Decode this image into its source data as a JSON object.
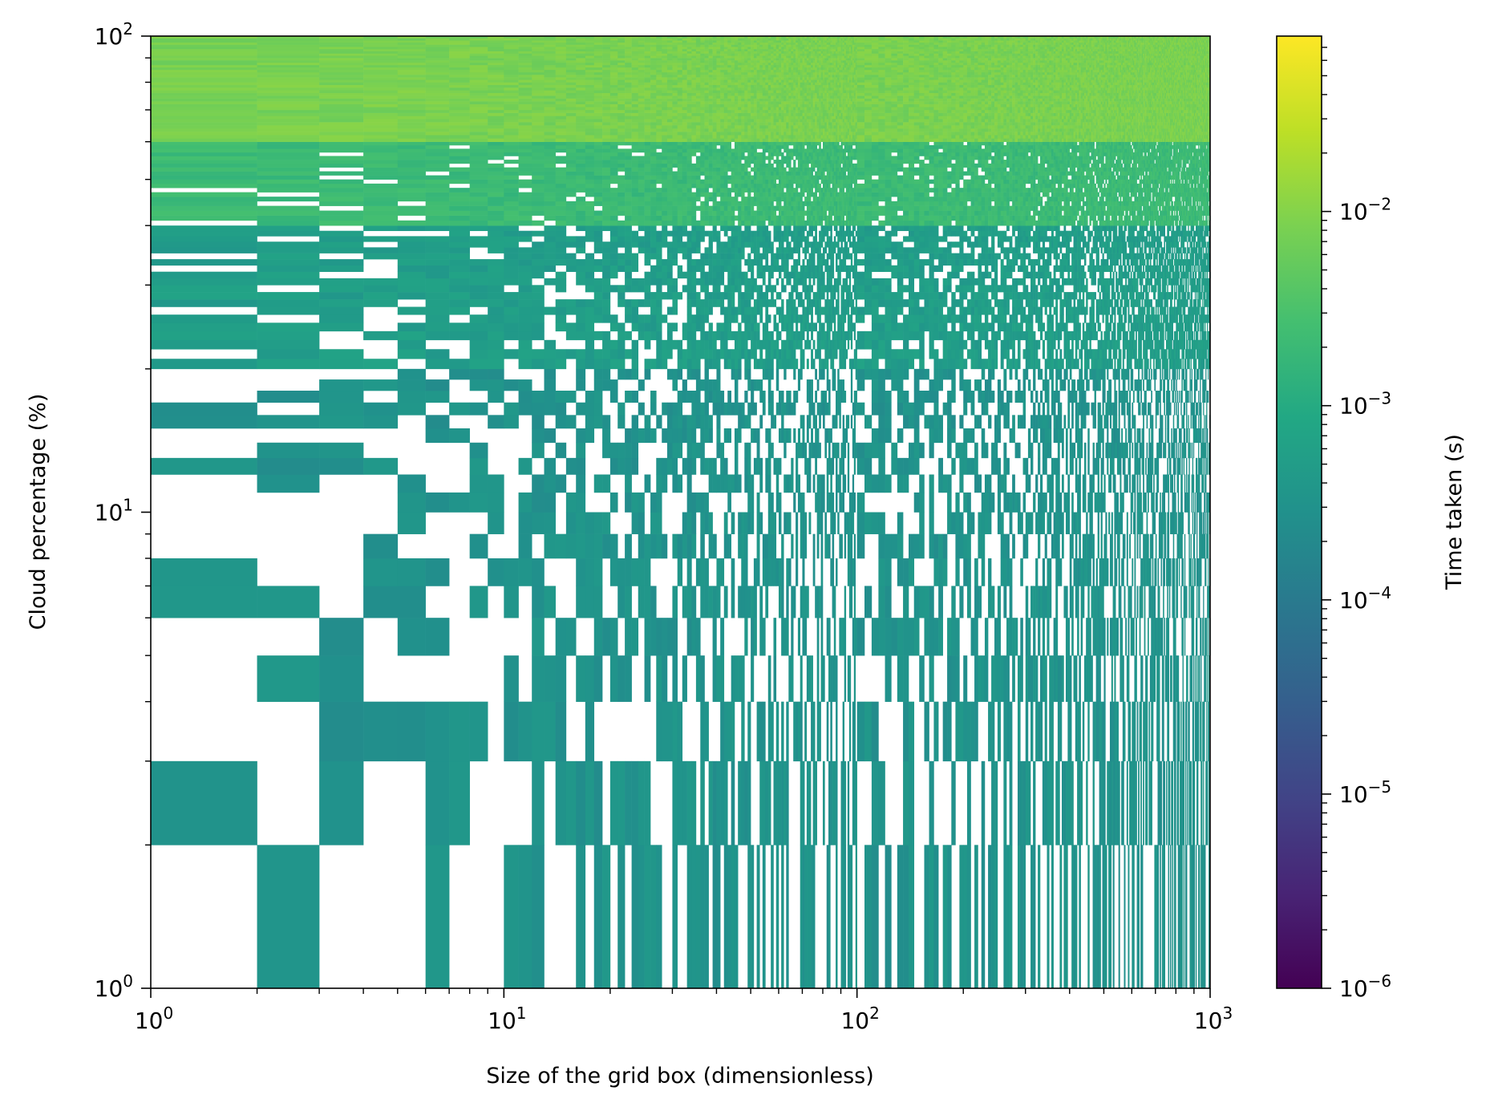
{
  "chart_data": {
    "type": "heatmap",
    "xlabel": "Size of the grid box (dimensionless)",
    "ylabel": "Cloud percentage (%)",
    "colorbar_label": "Time taken (s)",
    "xscale": "log",
    "yscale": "log",
    "cscale": "log",
    "xlim": [
      1,
      1000
    ],
    "ylim": [
      1,
      100
    ],
    "clim": [
      1e-06,
      0.08
    ],
    "colormap": "viridis",
    "x_ticks": [
      {
        "value": 1,
        "base": "10",
        "exp": "0"
      },
      {
        "value": 10,
        "base": "10",
        "exp": "1"
      },
      {
        "value": 100,
        "base": "10",
        "exp": "2"
      },
      {
        "value": 1000,
        "base": "10",
        "exp": "3"
      }
    ],
    "y_ticks": [
      {
        "value": 1,
        "base": "10",
        "exp": "0"
      },
      {
        "value": 10,
        "base": "10",
        "exp": "1"
      },
      {
        "value": 100,
        "base": "10",
        "exp": "2"
      }
    ],
    "colorbar_ticks": [
      {
        "value": 1e-06,
        "base": "10",
        "exp": "−6"
      },
      {
        "value": 1e-05,
        "base": "10",
        "exp": "−5"
      },
      {
        "value": 0.0001,
        "base": "10",
        "exp": "−4"
      },
      {
        "value": 0.001,
        "base": "10",
        "exp": "−3"
      },
      {
        "value": 0.01,
        "base": "10",
        "exp": "−2"
      }
    ],
    "time_by_cloud_pct": [
      {
        "y_range": [
          1,
          20
        ],
        "time_s": 0.0003,
        "coverage": "sparse"
      },
      {
        "y_range": [
          20,
          40
        ],
        "time_s": 0.0005,
        "coverage": "partial"
      },
      {
        "y_range": [
          40,
          60
        ],
        "time_s": 0.002,
        "coverage": "mostly"
      },
      {
        "y_range": [
          60,
          100
        ],
        "time_s": 0.008,
        "coverage": "full"
      }
    ],
    "colors": {
      "viridis_low": "#440154",
      "viridis_mid": "#21918c",
      "viridis_high": "#fde725",
      "missing": "#ffffff"
    }
  }
}
